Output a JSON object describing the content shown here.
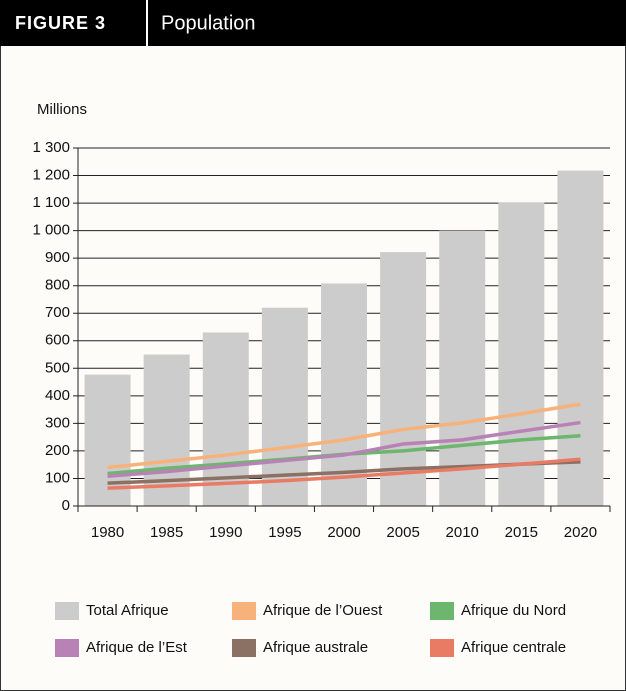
{
  "chart_data": {
    "type": "bar",
    "figure_label": "FIGURE 3",
    "title": "Population",
    "y_label": "Millions",
    "categories": [
      "1980",
      "1985",
      "1990",
      "1995",
      "2000",
      "2005",
      "2010",
      "2015",
      "2020"
    ],
    "series": [
      {
        "name": "Total Afrique",
        "type": "bar",
        "color": "#cdcccc",
        "values": [
          477,
          550,
          630,
          720,
          808,
          922,
          1000,
          1103,
          1218
        ]
      },
      {
        "name": "Afrique de l’Ouest",
        "type": "line",
        "color": "#f6b27a",
        "values": [
          140,
          162,
          185,
          212,
          240,
          278,
          302,
          335,
          370
        ]
      },
      {
        "name": "Afrique du Nord",
        "type": "line",
        "color": "#6cb66d",
        "values": [
          118,
          137,
          153,
          170,
          188,
          200,
          220,
          240,
          255
        ]
      },
      {
        "name": "Afrique de l’Est",
        "type": "line",
        "color": "#b882b6",
        "values": [
          108,
          125,
          145,
          165,
          185,
          225,
          240,
          272,
          303
        ]
      },
      {
        "name": "Afrique australe",
        "type": "line",
        "color": "#8a7163",
        "values": [
          83,
          92,
          102,
          112,
          122,
          135,
          143,
          152,
          160
        ]
      },
      {
        "name": "Afrique centrale",
        "type": "line",
        "color": "#e97b65",
        "values": [
          65,
          73,
          82,
          92,
          105,
          120,
          135,
          152,
          170
        ]
      }
    ],
    "ylim": [
      0,
      1300
    ],
    "yticks": [
      0,
      100,
      200,
      300,
      400,
      500,
      600,
      700,
      800,
      900,
      {
        "value": 1000,
        "label": "1 000"
      },
      {
        "value": 1100,
        "label": "1 100"
      },
      {
        "value": 1200,
        "label": "1 200"
      },
      {
        "value": 1300,
        "label": "1 300"
      }
    ],
    "grid": true
  }
}
